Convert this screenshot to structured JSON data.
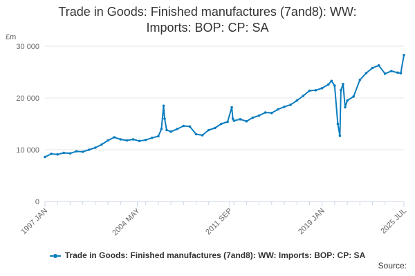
{
  "chart_data": {
    "type": "line",
    "title_line1": "Trade in Goods: Finished manufactures (7and8): WW:",
    "title_line2": "Imports: BOP: CP: SA",
    "ylabel": "£m",
    "ylim": [
      0,
      30000
    ],
    "yticks": [
      0,
      10000,
      20000,
      30000
    ],
    "ytick_labels": [
      "0",
      "10 000",
      "20 000",
      "30 000"
    ],
    "xlim": [
      "1997-01",
      "2025-07"
    ],
    "xtick_labels": [
      {
        "date": "1997-01",
        "label": "1997 JAN"
      },
      {
        "date": "2004-05",
        "label": "2004 MAY"
      },
      {
        "date": "2011-09",
        "label": "2011 SEP"
      },
      {
        "date": "2019-01",
        "label": "2019 JAN"
      },
      {
        "date": "2025-07",
        "label": "2025 JUL"
      }
    ],
    "minor_tick_years": [
      1998,
      1999,
      2000,
      2001,
      2002,
      2003,
      2005,
      2006,
      2007,
      2008,
      2009,
      2010,
      2012,
      2013,
      2014,
      2015,
      2016,
      2017,
      2018,
      2020,
      2021,
      2022,
      2023,
      2024
    ],
    "grid": "horizontal",
    "legend_position": "bottom",
    "color": "#0a7cbf",
    "series": [
      {
        "name": "Trade in Goods: Finished manufactures (7and8): WW: Imports: BOP: CP: SA",
        "x": [
          "1997-01",
          "1997-07",
          "1998-01",
          "1998-07",
          "1999-01",
          "1999-07",
          "2000-01",
          "2000-07",
          "2001-01",
          "2001-07",
          "2002-01",
          "2002-07",
          "2003-01",
          "2003-07",
          "2004-01",
          "2004-07",
          "2005-01",
          "2005-07",
          "2006-01",
          "2006-04",
          "2006-06",
          "2006-07",
          "2006-09",
          "2007-01",
          "2007-07",
          "2008-01",
          "2008-07",
          "2009-01",
          "2009-07",
          "2010-01",
          "2010-07",
          "2011-01",
          "2011-07",
          "2011-11",
          "2011-12",
          "2012-01",
          "2012-07",
          "2013-01",
          "2013-07",
          "2014-01",
          "2014-07",
          "2015-01",
          "2015-07",
          "2016-01",
          "2016-07",
          "2017-01",
          "2017-07",
          "2018-01",
          "2018-07",
          "2019-01",
          "2019-07",
          "2019-10",
          "2020-01",
          "2020-04",
          "2020-06",
          "2020-07",
          "2020-09",
          "2020-11",
          "2021-01",
          "2021-07",
          "2022-01",
          "2022-07",
          "2023-01",
          "2023-07",
          "2024-01",
          "2024-07",
          "2025-01",
          "2025-04",
          "2025-07"
        ],
        "values": [
          8600,
          9200,
          9100,
          9400,
          9300,
          9700,
          9600,
          10000,
          10400,
          11000,
          11800,
          12400,
          12000,
          11800,
          12000,
          11700,
          11900,
          12300,
          12600,
          14000,
          18500,
          16000,
          13800,
          13500,
          14000,
          14600,
          14500,
          13000,
          12800,
          13800,
          14200,
          15000,
          15400,
          18200,
          16000,
          15600,
          15900,
          15500,
          16200,
          16600,
          17200,
          17100,
          17800,
          18300,
          18700,
          19500,
          20400,
          21400,
          21500,
          21900,
          22600,
          23300,
          22400,
          15000,
          12700,
          21500,
          22700,
          18200,
          19500,
          20300,
          23500,
          24800,
          25800,
          26300,
          24700,
          25200,
          24900,
          24800,
          28300
        ]
      }
    ]
  },
  "legend": {
    "label": "Trade in Goods: Finished manufactures (7and8): WW: Imports: BOP: CP: SA"
  },
  "source": {
    "label": "Source:"
  }
}
